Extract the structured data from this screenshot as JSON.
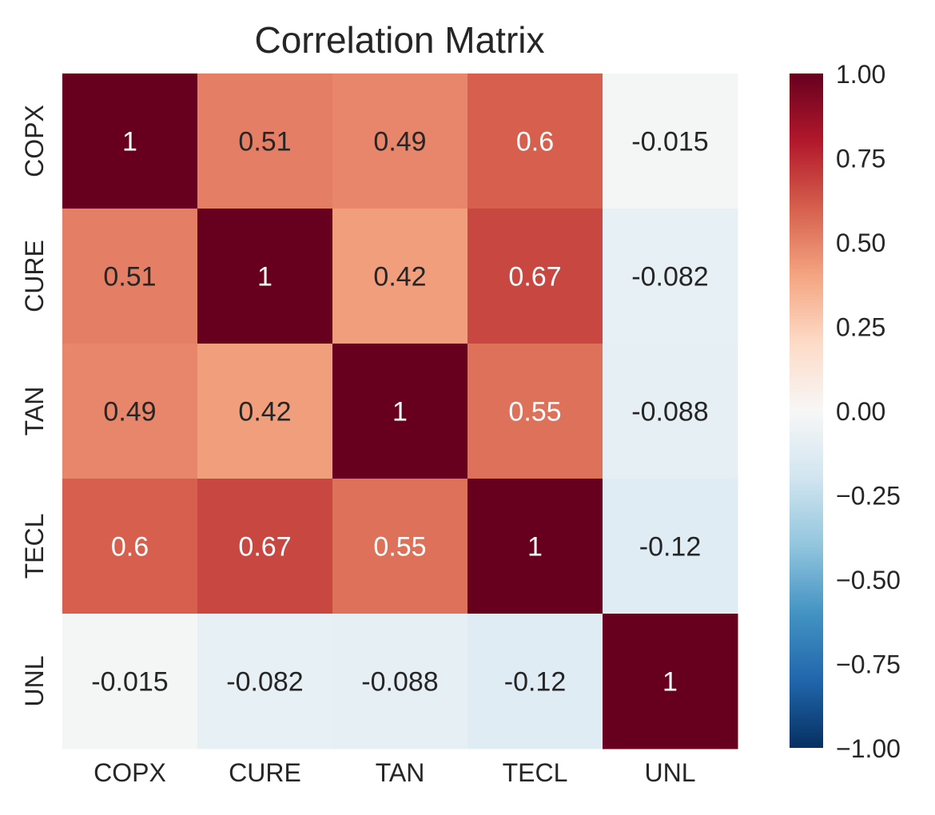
{
  "chart_data": {
    "type": "heatmap",
    "title": "Correlation Matrix",
    "x_labels": [
      "COPX",
      "CURE",
      "TAN",
      "TECL",
      "UNL"
    ],
    "y_labels": [
      "COPX",
      "CURE",
      "TAN",
      "TECL",
      "UNL"
    ],
    "values": [
      [
        1,
        0.51,
        0.49,
        0.6,
        -0.015
      ],
      [
        0.51,
        1,
        0.42,
        0.67,
        -0.082
      ],
      [
        0.49,
        0.42,
        1,
        0.55,
        -0.088
      ],
      [
        0.6,
        0.67,
        0.55,
        1,
        -0.12
      ],
      [
        -0.015,
        -0.082,
        -0.088,
        -0.12,
        1
      ]
    ],
    "annotations": [
      [
        "1",
        "0.51",
        "0.49",
        "0.6",
        "-0.015"
      ],
      [
        "0.51",
        "1",
        "0.42",
        "0.67",
        "-0.082"
      ],
      [
        "0.49",
        "0.42",
        "1",
        "0.55",
        "-0.088"
      ],
      [
        "0.6",
        "0.67",
        "0.55",
        "1",
        "-0.12"
      ],
      [
        "-0.015",
        "-0.082",
        "-0.088",
        "-0.12",
        "1"
      ]
    ],
    "colormap": "RdBu_r",
    "vmin": -1,
    "vmax": 1,
    "colorbar_ticks": [
      1,
      0.75,
      0.5,
      0.25,
      0,
      -0.25,
      -0.5,
      -0.75,
      -1
    ],
    "colorbar_tick_labels": [
      "1.00",
      "0.75",
      "0.50",
      "0.25",
      "0.00",
      "−0.25",
      "−0.50",
      "−0.75",
      "−1.00"
    ],
    "colors": {
      "cmap_stops": [
        "#053061",
        "#2166ac",
        "#4393c3",
        "#92c5de",
        "#d1e5f0",
        "#f7f7f7",
        "#fddbc7",
        "#f4a582",
        "#d6604d",
        "#b2182b",
        "#67001f"
      ],
      "text_dark": "#262626",
      "text_light": "#ffffff",
      "background": "#ffffff"
    },
    "grid": false,
    "colorbar_position": "right"
  }
}
